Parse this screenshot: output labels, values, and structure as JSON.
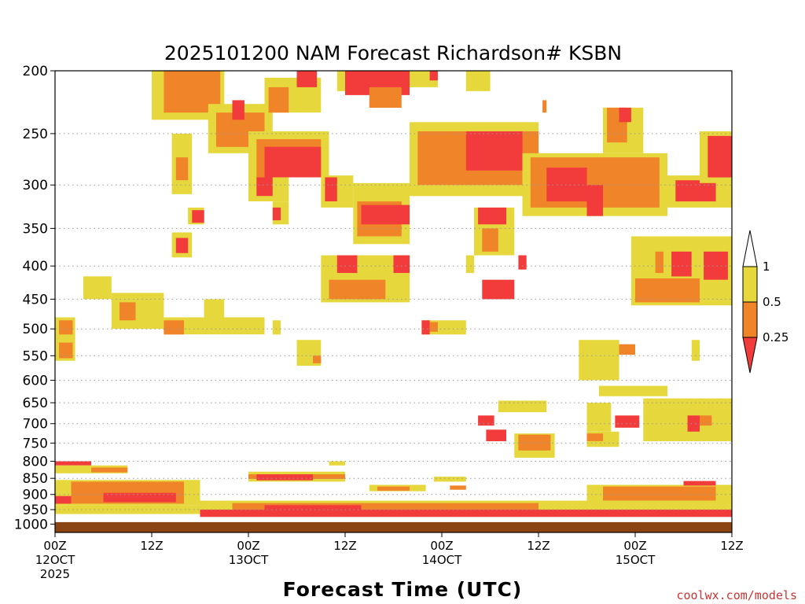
{
  "chart_data": {
    "type": "heatmap",
    "title": "2025101200 NAM Forecast Richardson# KSBN",
    "xlabel": "Forecast Time (UTC)",
    "ylabel": "",
    "credit": "coolwx.com/models",
    "x_range_hours": [
      0,
      84
    ],
    "y_axis": {
      "scale": "log",
      "reversed": true,
      "range": [
        200,
        1030
      ]
    },
    "y_ticks": [
      200,
      250,
      300,
      350,
      400,
      450,
      500,
      550,
      600,
      650,
      700,
      750,
      800,
      850,
      900,
      950,
      1000
    ],
    "x_ticks": [
      {
        "hour": 0,
        "line1": "00Z",
        "line2": "12OCT",
        "line3": "2025"
      },
      {
        "hour": 12,
        "line1": "12Z",
        "line2": "",
        "line3": ""
      },
      {
        "hour": 24,
        "line1": "00Z",
        "line2": "13OCT",
        "line3": ""
      },
      {
        "hour": 36,
        "line1": "12Z",
        "line2": "",
        "line3": ""
      },
      {
        "hour": 48,
        "line1": "00Z",
        "line2": "14OCT",
        "line3": ""
      },
      {
        "hour": 60,
        "line1": "12Z",
        "line2": "",
        "line3": ""
      },
      {
        "hour": 72,
        "line1": "00Z",
        "line2": "15OCT",
        "line3": ""
      },
      {
        "hour": 84,
        "line1": "12Z",
        "line2": "",
        "line3": ""
      }
    ],
    "gridlines": "dotted horizontal at pressure ticks",
    "ground_level_hpa": 993,
    "ground_color": "#8b4513",
    "legend": {
      "position": "right",
      "levels": [
        {
          "label": "1",
          "color": "#ffffff"
        },
        {
          "label": "0.5",
          "color": "#e6d83c"
        },
        {
          "label": "0.25",
          "color": "#f08428"
        },
        {
          "label": "",
          "color": "#f23c3c"
        }
      ]
    },
    "colors": {
      "lt1": "#e6d83c",
      "lt05": "#f08428",
      "lt025": "#f23c3c"
    },
    "regions": [
      {
        "class": "lt1",
        "h": [
          12,
          21
        ],
        "p": [
          200,
          238
        ]
      },
      {
        "class": "lt05",
        "h": [
          13.5,
          20.5
        ],
        "p": [
          200,
          232
        ]
      },
      {
        "class": "lt1",
        "h": [
          19,
          27
        ],
        "p": [
          225,
          268
        ]
      },
      {
        "class": "lt05",
        "h": [
          20,
          26
        ],
        "p": [
          232,
          262
        ]
      },
      {
        "class": "lt025",
        "h": [
          22,
          23.5
        ],
        "p": [
          222,
          238
        ]
      },
      {
        "class": "lt1",
        "h": [
          26,
          33
        ],
        "p": [
          205,
          232
        ]
      },
      {
        "class": "lt05",
        "h": [
          26.5,
          29
        ],
        "p": [
          212,
          232
        ]
      },
      {
        "class": "lt025",
        "h": [
          30,
          32.5
        ],
        "p": [
          200,
          212
        ]
      },
      {
        "class": "lt1",
        "h": [
          35,
          44
        ],
        "p": [
          200,
          215
        ]
      },
      {
        "class": "lt025",
        "h": [
          36,
          44
        ],
        "p": [
          200,
          218
        ]
      },
      {
        "class": "lt05",
        "h": [
          39,
          43
        ],
        "p": [
          212,
          228
        ]
      },
      {
        "class": "lt1",
        "h": [
          44,
          47.5
        ],
        "p": [
          200,
          212
        ]
      },
      {
        "class": "lt025",
        "h": [
          46.5,
          47.5
        ],
        "p": [
          200,
          207
        ]
      },
      {
        "class": "lt1",
        "h": [
          51,
          54
        ],
        "p": [
          200,
          215
        ]
      },
      {
        "class": "lt05",
        "h": [
          60.5,
          61
        ],
        "p": [
          222,
          232
        ]
      },
      {
        "class": "lt1",
        "h": [
          24,
          34
        ],
        "p": [
          248,
          292
        ]
      },
      {
        "class": "lt05",
        "h": [
          25,
          33
        ],
        "p": [
          255,
          292
        ]
      },
      {
        "class": "lt025",
        "h": [
          26,
          33
        ],
        "p": [
          262,
          292
        ]
      },
      {
        "class": "lt1",
        "h": [
          24,
          29
        ],
        "p": [
          292,
          318
        ]
      },
      {
        "class": "lt025",
        "h": [
          25,
          27
        ],
        "p": [
          292,
          312
        ]
      },
      {
        "class": "lt1",
        "h": [
          27,
          29
        ],
        "p": [
          318,
          345
        ]
      },
      {
        "class": "lt025",
        "h": [
          27,
          28
        ],
        "p": [
          325,
          340
        ]
      },
      {
        "class": "lt1",
        "h": [
          14.5,
          17
        ],
        "p": [
          250,
          310
        ]
      },
      {
        "class": "lt05",
        "h": [
          15,
          16.5
        ],
        "p": [
          272,
          295
        ]
      },
      {
        "class": "lt1",
        "h": [
          16.5,
          18.5
        ],
        "p": [
          325,
          345
        ]
      },
      {
        "class": "lt025",
        "h": [
          17,
          18.5
        ],
        "p": [
          328,
          343
        ]
      },
      {
        "class": "lt1",
        "h": [
          14.5,
          17
        ],
        "p": [
          355,
          388
        ]
      },
      {
        "class": "lt025",
        "h": [
          15,
          16.5
        ],
        "p": [
          362,
          382
        ]
      },
      {
        "class": "lt1",
        "h": [
          44,
          60
        ],
        "p": [
          240,
          312
        ]
      },
      {
        "class": "lt05",
        "h": [
          45,
          60
        ],
        "p": [
          248,
          300
        ]
      },
      {
        "class": "lt025",
        "h": [
          51,
          58
        ],
        "p": [
          248,
          285
        ]
      },
      {
        "class": "lt1",
        "h": [
          58,
          76
        ],
        "p": [
          268,
          335
        ]
      },
      {
        "class": "lt05",
        "h": [
          59,
          75
        ],
        "p": [
          272,
          325
        ]
      },
      {
        "class": "lt025",
        "h": [
          61,
          66
        ],
        "p": [
          282,
          318
        ]
      },
      {
        "class": "lt025",
        "h": [
          66,
          68
        ],
        "p": [
          300,
          335
        ]
      },
      {
        "class": "lt1",
        "h": [
          76,
          84
        ],
        "p": [
          290,
          325
        ]
      },
      {
        "class": "lt025",
        "h": [
          77,
          82
        ],
        "p": [
          295,
          318
        ]
      },
      {
        "class": "lt1",
        "h": [
          80,
          84
        ],
        "p": [
          248,
          298
        ]
      },
      {
        "class": "lt025",
        "h": [
          81,
          84
        ],
        "p": [
          252,
          292
        ]
      },
      {
        "class": "lt1",
        "h": [
          68,
          73
        ],
        "p": [
          228,
          268
        ]
      },
      {
        "class": "lt05",
        "h": [
          68.5,
          71
        ],
        "p": [
          228,
          258
        ]
      },
      {
        "class": "lt025",
        "h": [
          70,
          71.5
        ],
        "p": [
          228,
          240
        ]
      },
      {
        "class": "lt1",
        "h": [
          33,
          37
        ],
        "p": [
          290,
          325
        ]
      },
      {
        "class": "lt025",
        "h": [
          33.5,
          35
        ],
        "p": [
          292,
          318
        ]
      },
      {
        "class": "lt1",
        "h": [
          37,
          44
        ],
        "p": [
          298,
          370
        ]
      },
      {
        "class": "lt05",
        "h": [
          37.5,
          43
        ],
        "p": [
          318,
          360
        ]
      },
      {
        "class": "lt025",
        "h": [
          38,
          44
        ],
        "p": [
          322,
          345
        ]
      },
      {
        "class": "lt1",
        "h": [
          52,
          57
        ],
        "p": [
          325,
          385
        ]
      },
      {
        "class": "lt025",
        "h": [
          52.5,
          56
        ],
        "p": [
          325,
          345
        ]
      },
      {
        "class": "lt05",
        "h": [
          53,
          55
        ],
        "p": [
          350,
          380
        ]
      },
      {
        "class": "lt1",
        "h": [
          33,
          44
        ],
        "p": [
          385,
          455
        ]
      },
      {
        "class": "lt05",
        "h": [
          34,
          41
        ],
        "p": [
          420,
          450
        ]
      },
      {
        "class": "lt025",
        "h": [
          35,
          37.5
        ],
        "p": [
          385,
          410
        ]
      },
      {
        "class": "lt025",
        "h": [
          42,
          44
        ],
        "p": [
          385,
          410
        ]
      },
      {
        "class": "lt1",
        "h": [
          51,
          52
        ],
        "p": [
          385,
          410
        ]
      },
      {
        "class": "lt025",
        "h": [
          53,
          57
        ],
        "p": [
          420,
          450
        ]
      },
      {
        "class": "lt025",
        "h": [
          57.5,
          58.5
        ],
        "p": [
          385,
          405
        ]
      },
      {
        "class": "lt1",
        "h": [
          71.5,
          84
        ],
        "p": [
          360,
          460
        ]
      },
      {
        "class": "lt05",
        "h": [
          72,
          80
        ],
        "p": [
          418,
          455
        ]
      },
      {
        "class": "lt025",
        "h": [
          76.5,
          79
        ],
        "p": [
          380,
          415
        ]
      },
      {
        "class": "lt025",
        "h": [
          80.5,
          83.5
        ],
        "p": [
          380,
          420
        ]
      },
      {
        "class": "lt05",
        "h": [
          74.5,
          75.5
        ],
        "p": [
          380,
          410
        ]
      },
      {
        "class": "lt1",
        "h": [
          3.5,
          7
        ],
        "p": [
          415,
          450
        ]
      },
      {
        "class": "lt1",
        "h": [
          7,
          13.5
        ],
        "p": [
          440,
          500
        ]
      },
      {
        "class": "lt05",
        "h": [
          8,
          10
        ],
        "p": [
          455,
          485
        ]
      },
      {
        "class": "lt1",
        "h": [
          13.5,
          26
        ],
        "p": [
          480,
          510
        ]
      },
      {
        "class": "lt05",
        "h": [
          13.5,
          16
        ],
        "p": [
          485,
          510
        ]
      },
      {
        "class": "lt1",
        "h": [
          18.5,
          21
        ],
        "p": [
          450,
          490
        ]
      },
      {
        "class": "lt1",
        "h": [
          27,
          28
        ],
        "p": [
          485,
          510
        ]
      },
      {
        "class": "lt1",
        "h": [
          0,
          2.5
        ],
        "p": [
          480,
          560
        ]
      },
      {
        "class": "lt05",
        "h": [
          0.5,
          2.2
        ],
        "p": [
          485,
          510
        ]
      },
      {
        "class": "lt05",
        "h": [
          0.5,
          2.2
        ],
        "p": [
          525,
          555
        ]
      },
      {
        "class": "lt1",
        "h": [
          45.5,
          51
        ],
        "p": [
          485,
          510
        ]
      },
      {
        "class": "lt025",
        "h": [
          45.5,
          46.5
        ],
        "p": [
          485,
          510
        ]
      },
      {
        "class": "lt05",
        "h": [
          46.5,
          47.5
        ],
        "p": [
          488,
          505
        ]
      },
      {
        "class": "lt1",
        "h": [
          30,
          33
        ],
        "p": [
          520,
          570
        ]
      },
      {
        "class": "lt05",
        "h": [
          32,
          33
        ],
        "p": [
          550,
          565
        ]
      },
      {
        "class": "lt1",
        "h": [
          65,
          70
        ],
        "p": [
          520,
          600
        ]
      },
      {
        "class": "lt05",
        "h": [
          70,
          72
        ],
        "p": [
          528,
          548
        ]
      },
      {
        "class": "lt1",
        "h": [
          79,
          80
        ],
        "p": [
          520,
          560
        ]
      },
      {
        "class": "lt1",
        "h": [
          67.5,
          76
        ],
        "p": [
          612,
          635
        ]
      },
      {
        "class": "lt1",
        "h": [
          55,
          61
        ],
        "p": [
          645,
          672
        ]
      },
      {
        "class": "lt025",
        "h": [
          52.5,
          54.5
        ],
        "p": [
          680,
          705
        ]
      },
      {
        "class": "lt1",
        "h": [
          66,
          69
        ],
        "p": [
          650,
          720
        ]
      },
      {
        "class": "lt025",
        "h": [
          69.5,
          72.5
        ],
        "p": [
          680,
          710
        ]
      },
      {
        "class": "lt1",
        "h": [
          73,
          84
        ],
        "p": [
          640,
          745
        ]
      },
      {
        "class": "lt025",
        "h": [
          78.5,
          80
        ],
        "p": [
          680,
          720
        ]
      },
      {
        "class": "lt05",
        "h": [
          80,
          81.5
        ],
        "p": [
          680,
          705
        ]
      },
      {
        "class": "lt1",
        "h": [
          57,
          62
        ],
        "p": [
          725,
          790
        ]
      },
      {
        "class": "lt05",
        "h": [
          57.5,
          61.5
        ],
        "p": [
          728,
          770
        ]
      },
      {
        "class": "lt025",
        "h": [
          53.5,
          56
        ],
        "p": [
          715,
          745
        ]
      },
      {
        "class": "lt1",
        "h": [
          66,
          70
        ],
        "p": [
          720,
          760
        ]
      },
      {
        "class": "lt05",
        "h": [
          66,
          68
        ],
        "p": [
          725,
          745
        ]
      },
      {
        "class": "lt025",
        "h": [
          0,
          4.5
        ],
        "p": [
          800,
          812
        ]
      },
      {
        "class": "lt1",
        "h": [
          0,
          9
        ],
        "p": [
          812,
          835
        ]
      },
      {
        "class": "lt05",
        "h": [
          4.5,
          9
        ],
        "p": [
          818,
          832
        ]
      },
      {
        "class": "lt1",
        "h": [
          24,
          36
        ],
        "p": [
          830,
          860
        ]
      },
      {
        "class": "lt05",
        "h": [
          24,
          36
        ],
        "p": [
          838,
          852
        ]
      },
      {
        "class": "lt025",
        "h": [
          25,
          32
        ],
        "p": [
          838,
          856
        ]
      },
      {
        "class": "lt1",
        "h": [
          34,
          36
        ],
        "p": [
          800,
          812
        ]
      },
      {
        "class": "lt1",
        "h": [
          0,
          18
        ],
        "p": [
          855,
          935
        ]
      },
      {
        "class": "lt05",
        "h": [
          2,
          16
        ],
        "p": [
          860,
          930
        ]
      },
      {
        "class": "lt025",
        "h": [
          6,
          15
        ],
        "p": [
          895,
          925
        ]
      },
      {
        "class": "lt025",
        "h": [
          0,
          2
        ],
        "p": [
          905,
          930
        ]
      },
      {
        "class": "lt1",
        "h": [
          39,
          46
        ],
        "p": [
          870,
          890
        ]
      },
      {
        "class": "lt05",
        "h": [
          40,
          44
        ],
        "p": [
          875,
          888
        ]
      },
      {
        "class": "lt1",
        "h": [
          47,
          51
        ],
        "p": [
          845,
          860
        ]
      },
      {
        "class": "lt05",
        "h": [
          49,
          51
        ],
        "p": [
          872,
          885
        ]
      },
      {
        "class": "lt1",
        "h": [
          66,
          84
        ],
        "p": [
          870,
          945
        ]
      },
      {
        "class": "lt05",
        "h": [
          68,
          82
        ],
        "p": [
          875,
          920
        ]
      },
      {
        "class": "lt025",
        "h": [
          78,
          82
        ],
        "p": [
          858,
          872
        ]
      },
      {
        "class": "lt1",
        "h": [
          18,
          84
        ],
        "p": [
          920,
          965
        ]
      },
      {
        "class": "lt05",
        "h": [
          22,
          60
        ],
        "p": [
          928,
          955
        ]
      },
      {
        "class": "lt025",
        "h": [
          18,
          84
        ],
        "p": [
          950,
          975
        ]
      },
      {
        "class": "lt025",
        "h": [
          26,
          38
        ],
        "p": [
          935,
          952
        ]
      },
      {
        "class": "lt1",
        "h": [
          0,
          18
        ],
        "p": [
          935,
          965
        ]
      }
    ]
  }
}
